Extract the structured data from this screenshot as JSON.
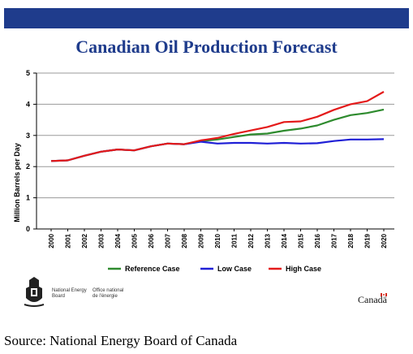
{
  "slide": {
    "title": "Canadian Oil Production Forecast",
    "bar_color": "#1f3c8c",
    "title_color": "#1f3c8c"
  },
  "footer": {
    "agency_en": [
      "National Energy",
      "Board"
    ],
    "agency_fr": [
      "Office national",
      "de l'énergie"
    ],
    "wordmark": "Canadä",
    "source": "Source: National Energy Board of Canada"
  },
  "chart_data": {
    "type": "line",
    "title": "",
    "xlabel": "",
    "ylabel": "Million Barrels per Day",
    "ylim": [
      0,
      5
    ],
    "yticks": [
      0,
      1,
      2,
      3,
      4,
      5
    ],
    "grid": "horizontal",
    "legend_position": "bottom",
    "x": [
      "2000",
      "2001",
      "2002",
      "2003",
      "2004",
      "2005",
      "2006",
      "2007",
      "2008",
      "2009",
      "2010",
      "2011",
      "2012",
      "2013",
      "2014",
      "2015",
      "2016",
      "2017",
      "2018",
      "2019",
      "2020"
    ],
    "series": [
      {
        "name": "Reference Case",
        "color": "#2e8b2e",
        "values": [
          2.18,
          2.2,
          2.35,
          2.48,
          2.55,
          2.52,
          2.65,
          2.74,
          2.72,
          2.82,
          2.87,
          2.95,
          3.03,
          3.06,
          3.15,
          3.22,
          3.32,
          3.5,
          3.65,
          3.72,
          3.83
        ]
      },
      {
        "name": "Low Case",
        "color": "#1f1fd6",
        "values": [
          2.18,
          2.2,
          2.35,
          2.48,
          2.55,
          2.52,
          2.65,
          2.74,
          2.72,
          2.8,
          2.74,
          2.76,
          2.76,
          2.74,
          2.76,
          2.74,
          2.75,
          2.82,
          2.87,
          2.87,
          2.88
        ]
      },
      {
        "name": "High Case",
        "color": "#e41a1a",
        "values": [
          2.18,
          2.2,
          2.35,
          2.48,
          2.55,
          2.52,
          2.65,
          2.74,
          2.72,
          2.84,
          2.92,
          3.05,
          3.16,
          3.27,
          3.43,
          3.45,
          3.6,
          3.82,
          4.0,
          4.1,
          4.4
        ]
      }
    ]
  }
}
